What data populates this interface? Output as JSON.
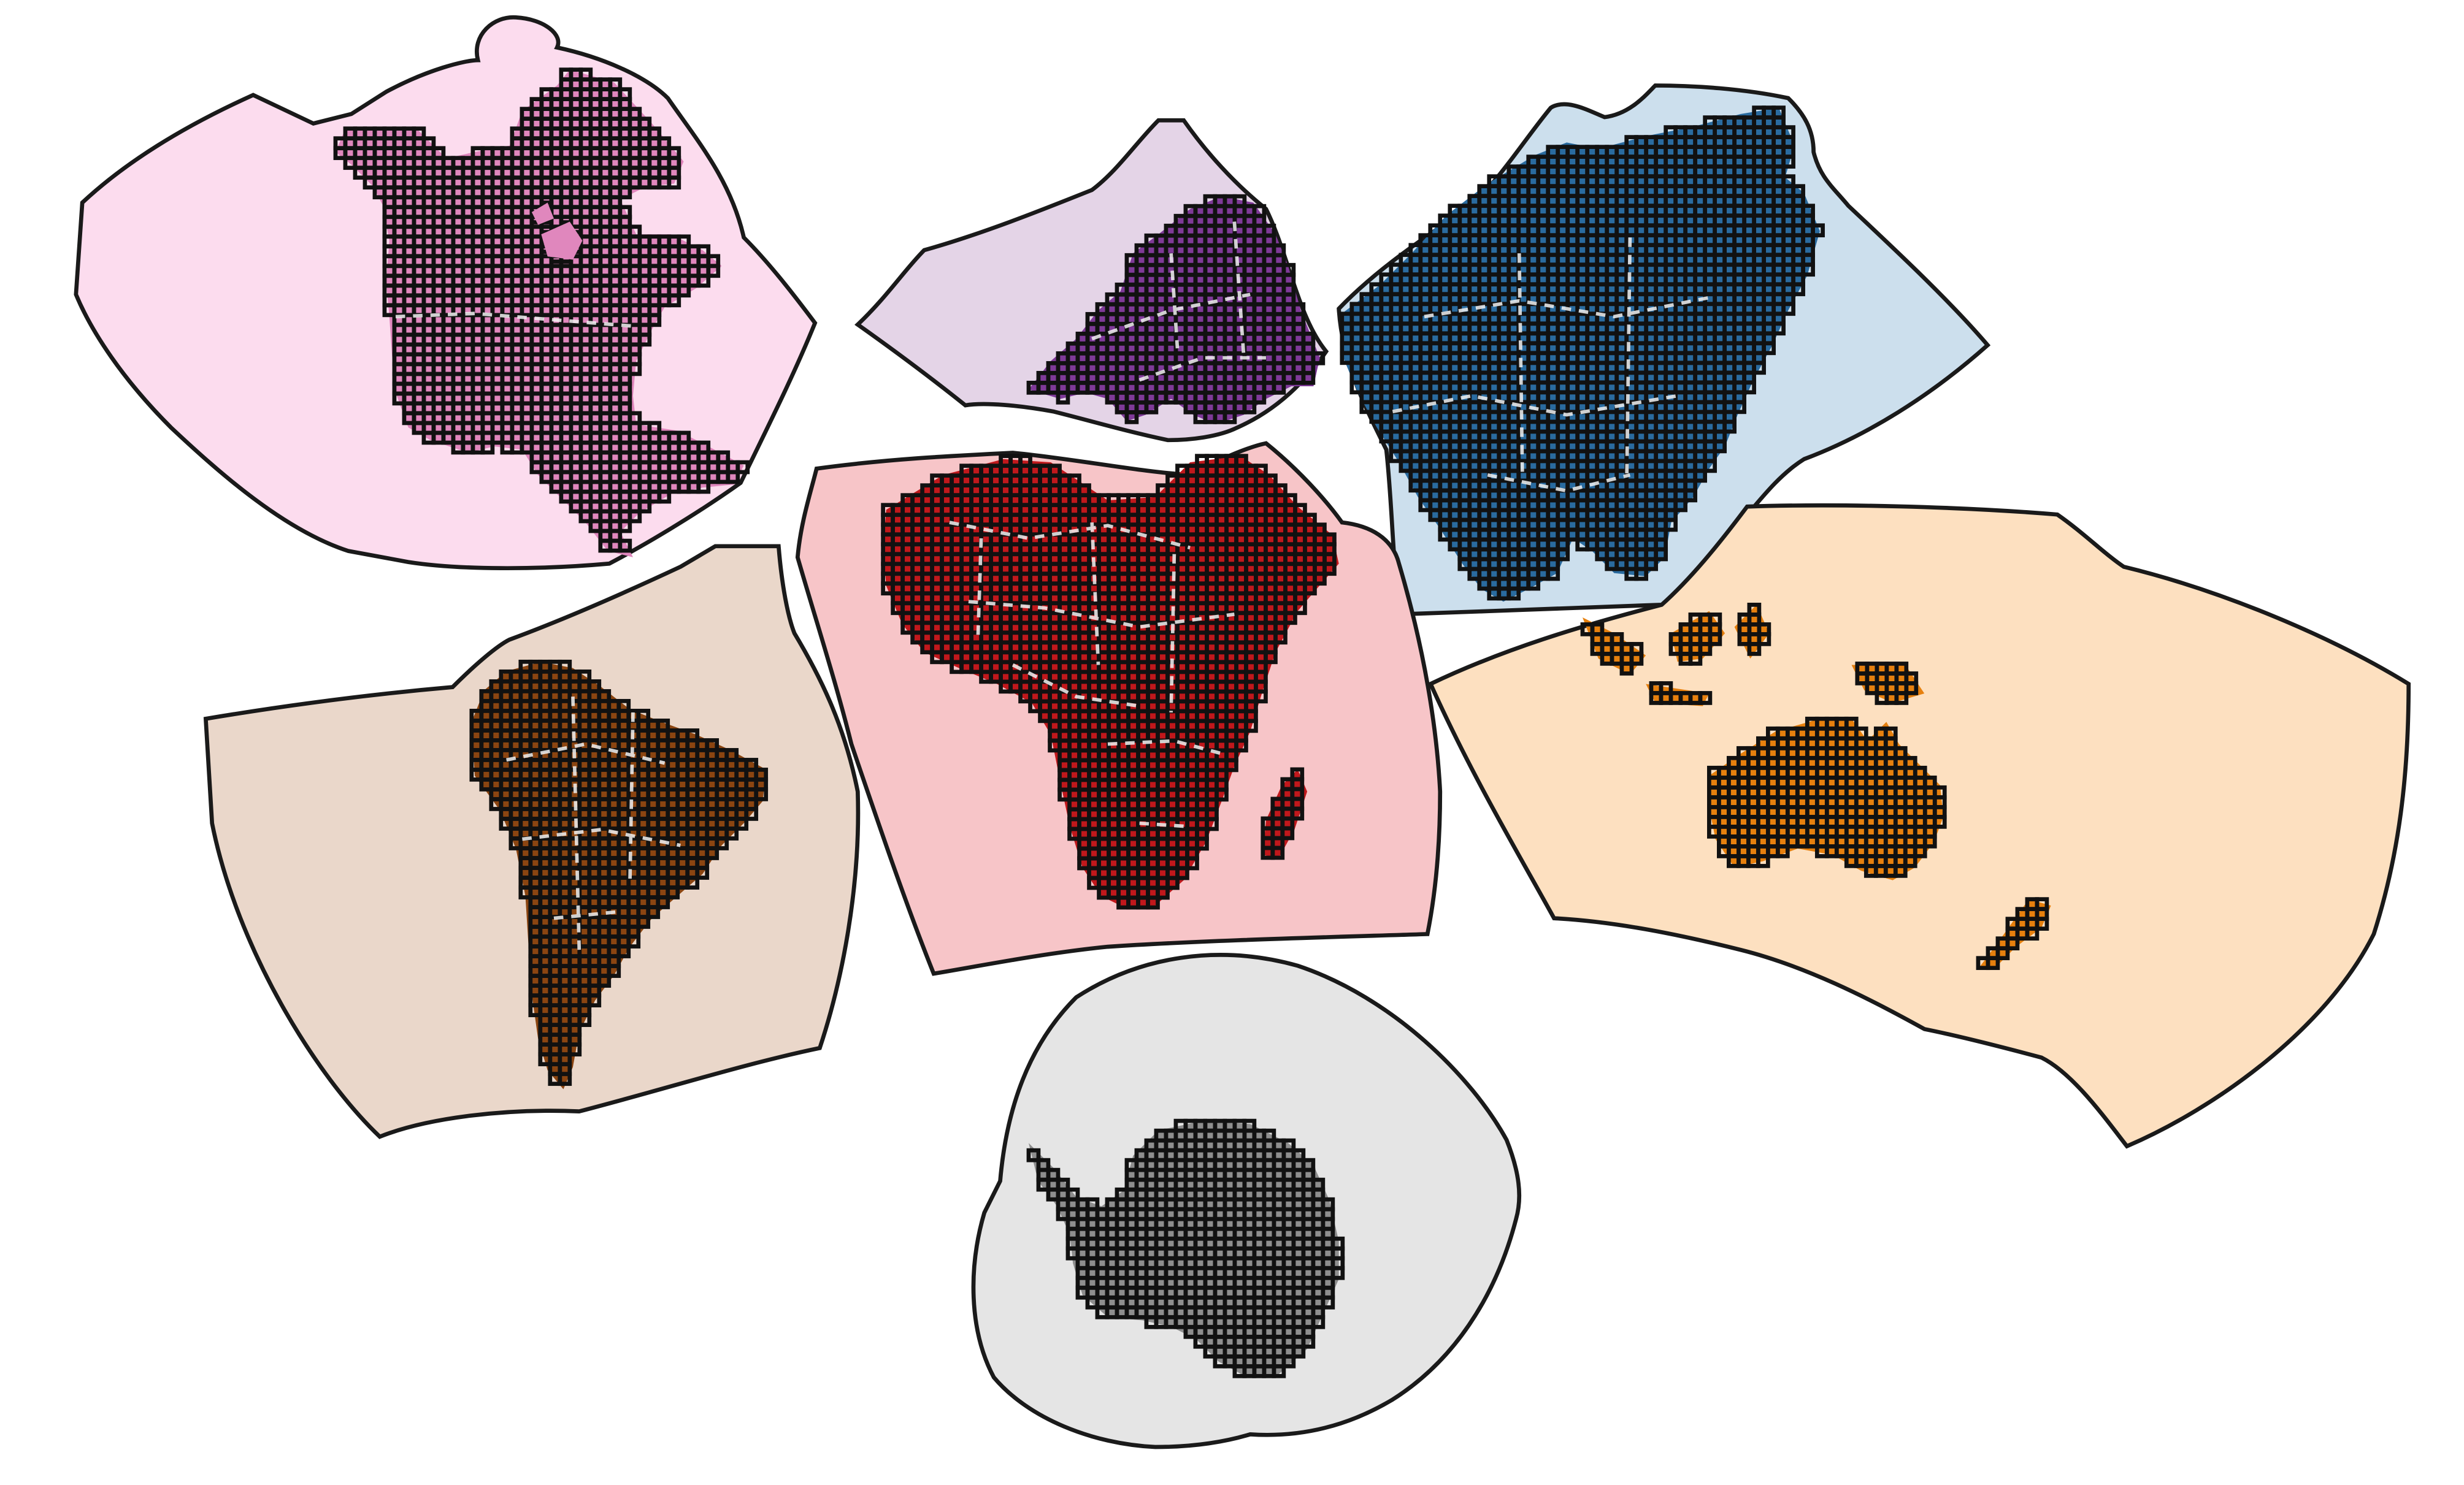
{
  "map": {
    "type": "interrupted world map, continents rendered as grid cells",
    "regions": [
      {
        "id": "north-america",
        "background": "#fcdcee",
        "land": "#e087bd"
      },
      {
        "id": "europe",
        "background": "#e4d4e7",
        "land": "#7f3a98"
      },
      {
        "id": "asia",
        "background": "#ccdfed",
        "land": "#2a6b9f"
      },
      {
        "id": "africa",
        "background": "#f7c5c8",
        "land": "#c0181c"
      },
      {
        "id": "south-america",
        "background": "#ead7ca",
        "land": "#8b4511"
      },
      {
        "id": "oceania",
        "background": "#fde0c0",
        "land": "#e6800e"
      },
      {
        "id": "antarctica",
        "background": "#e5e5e5",
        "land": "#8e8e8e"
      }
    ],
    "cell_outline": "#111111",
    "border_color": "#f2f2f2",
    "text": []
  }
}
